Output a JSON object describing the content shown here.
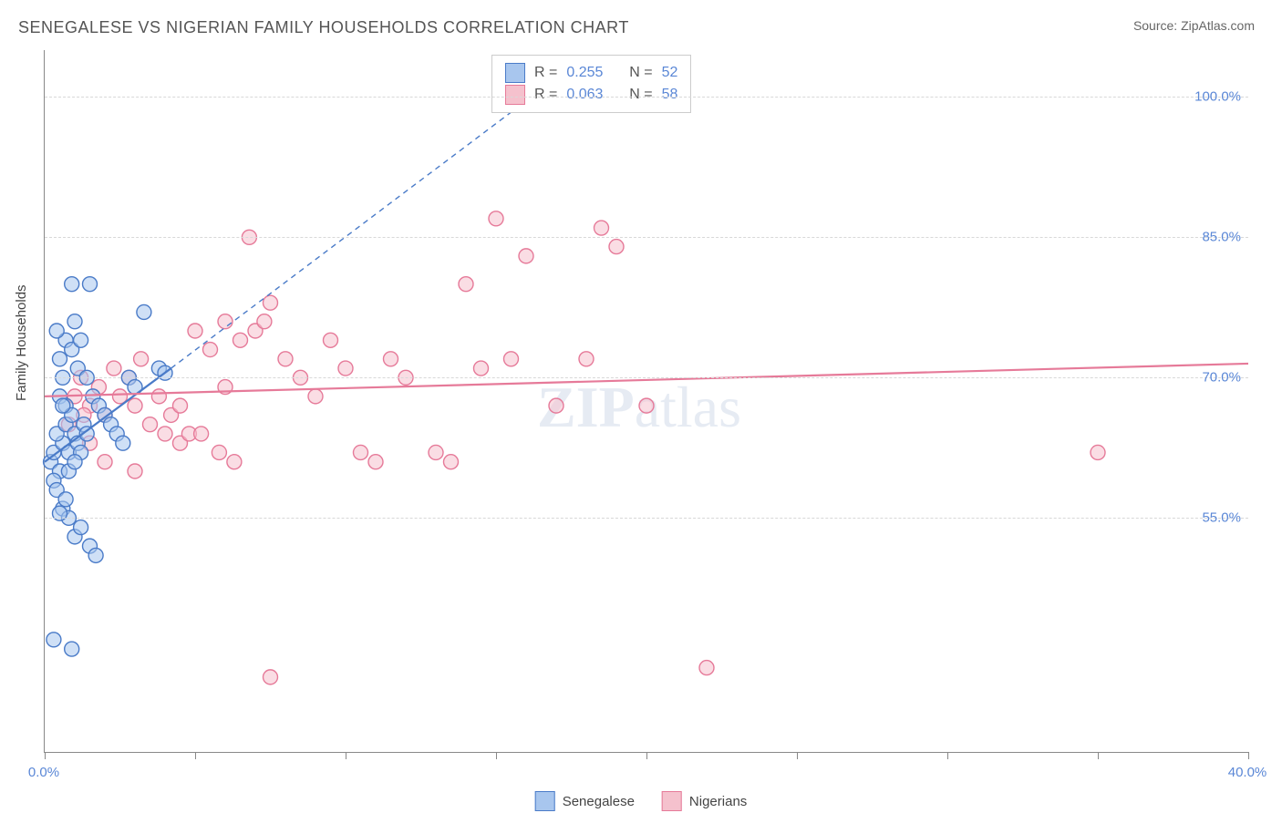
{
  "title": "SENEGALESE VS NIGERIAN FAMILY HOUSEHOLDS CORRELATION CHART",
  "source_prefix": "Source: ",
  "source_name": "ZipAtlas.com",
  "ylabel": "Family Households",
  "watermark_a": "ZIP",
  "watermark_b": "atlas",
  "chart": {
    "type": "scatter",
    "xlim": [
      0,
      40
    ],
    "ylim": [
      30,
      105
    ],
    "xticks": [
      0,
      5,
      10,
      15,
      20,
      25,
      30,
      35,
      40
    ],
    "xtick_labels": {
      "0": "0.0%",
      "40": "40.0%"
    },
    "yticks": [
      55,
      70,
      85,
      100
    ],
    "ytick_labels": [
      "55.0%",
      "70.0%",
      "85.0%",
      "100.0%"
    ],
    "grid_color": "#d8d8d8",
    "axis_color": "#888888",
    "background_color": "#ffffff",
    "marker_radius": 8,
    "marker_opacity": 0.55,
    "marker_stroke_width": 1.4,
    "trend_line_width": 2.2
  },
  "series": [
    {
      "name": "Senegalese",
      "fill": "#a8c6ee",
      "stroke": "#4a7bc8",
      "r_value": "0.255",
      "n_value": "52",
      "trend": {
        "x1": 0,
        "y1": 61,
        "x2": 4.2,
        "y2": 71,
        "dash_x2": 17,
        "dash_y2": 102
      },
      "points": [
        [
          0.2,
          61
        ],
        [
          0.3,
          62
        ],
        [
          0.5,
          60
        ],
        [
          0.6,
          63
        ],
        [
          0.4,
          64
        ],
        [
          0.7,
          65
        ],
        [
          0.8,
          62
        ],
        [
          0.3,
          59
        ],
        [
          0.5,
          68
        ],
        [
          0.6,
          70
        ],
        [
          0.7,
          67
        ],
        [
          0.9,
          66
        ],
        [
          1.0,
          64
        ],
        [
          1.1,
          63
        ],
        [
          1.2,
          62
        ],
        [
          0.4,
          58
        ],
        [
          0.8,
          60
        ],
        [
          1.0,
          61
        ],
        [
          1.3,
          65
        ],
        [
          1.4,
          64
        ],
        [
          0.5,
          72
        ],
        [
          0.7,
          74
        ],
        [
          0.9,
          73
        ],
        [
          1.1,
          71
        ],
        [
          0.6,
          56
        ],
        [
          0.8,
          55
        ],
        [
          1.0,
          53
        ],
        [
          1.2,
          54
        ],
        [
          1.5,
          52
        ],
        [
          1.7,
          51
        ],
        [
          1.4,
          70
        ],
        [
          1.6,
          68
        ],
        [
          1.8,
          67
        ],
        [
          2.0,
          66
        ],
        [
          2.2,
          65
        ],
        [
          2.4,
          64
        ],
        [
          2.6,
          63
        ],
        [
          2.8,
          70
        ],
        [
          1.5,
          80
        ],
        [
          0.9,
          80
        ],
        [
          0.4,
          75
        ],
        [
          1.0,
          76
        ],
        [
          1.2,
          74
        ],
        [
          0.6,
          67
        ],
        [
          0.3,
          42
        ],
        [
          0.9,
          41
        ],
        [
          0.5,
          55.5
        ],
        [
          0.7,
          57
        ],
        [
          3.0,
          69
        ],
        [
          3.3,
          77
        ],
        [
          3.8,
          71
        ],
        [
          4.0,
          70.5
        ]
      ]
    },
    {
      "name": "Nigerians",
      "fill": "#f5c1cd",
      "stroke": "#e67a99",
      "r_value": "0.063",
      "n_value": "58",
      "trend": {
        "x1": 0,
        "y1": 68,
        "x2": 40,
        "y2": 71.5
      },
      "points": [
        [
          1.0,
          68
        ],
        [
          1.5,
          67
        ],
        [
          2.0,
          66
        ],
        [
          2.5,
          68
        ],
        [
          3.0,
          67
        ],
        [
          3.5,
          65
        ],
        [
          4.0,
          64
        ],
        [
          4.5,
          63
        ],
        [
          1.2,
          70
        ],
        [
          1.8,
          69
        ],
        [
          2.3,
          71
        ],
        [
          2.8,
          70
        ],
        [
          3.2,
          72
        ],
        [
          3.8,
          68
        ],
        [
          4.2,
          66
        ],
        [
          4.8,
          64
        ],
        [
          5.0,
          75
        ],
        [
          5.5,
          73
        ],
        [
          6.0,
          76
        ],
        [
          6.5,
          74
        ],
        [
          7.0,
          75
        ],
        [
          7.5,
          78
        ],
        [
          8.0,
          72
        ],
        [
          5.2,
          64
        ],
        [
          5.8,
          62
        ],
        [
          6.3,
          61
        ],
        [
          6.8,
          85
        ],
        [
          7.3,
          76
        ],
        [
          8.5,
          70
        ],
        [
          9.0,
          68
        ],
        [
          9.5,
          74
        ],
        [
          10.0,
          71
        ],
        [
          10.5,
          62
        ],
        [
          11.0,
          61
        ],
        [
          11.5,
          72
        ],
        [
          12.0,
          70
        ],
        [
          13.0,
          62
        ],
        [
          13.5,
          61
        ],
        [
          14.0,
          80
        ],
        [
          14.5,
          71
        ],
        [
          15.0,
          87
        ],
        [
          15.5,
          72
        ],
        [
          16.0,
          83
        ],
        [
          17.0,
          67
        ],
        [
          18.0,
          72
        ],
        [
          18.5,
          86
        ],
        [
          19.0,
          84
        ],
        [
          20.0,
          67
        ],
        [
          1.5,
          63
        ],
        [
          2.0,
          61
        ],
        [
          7.5,
          38
        ],
        [
          22.0,
          39
        ],
        [
          35.0,
          62
        ],
        [
          3.0,
          60
        ],
        [
          0.8,
          65
        ],
        [
          1.3,
          66
        ],
        [
          4.5,
          67
        ],
        [
          6.0,
          69
        ]
      ]
    }
  ],
  "legend": {
    "items": [
      "Senegalese",
      "Nigerians"
    ]
  },
  "stats_box": {
    "r_label": "R =",
    "n_label": "N ="
  }
}
